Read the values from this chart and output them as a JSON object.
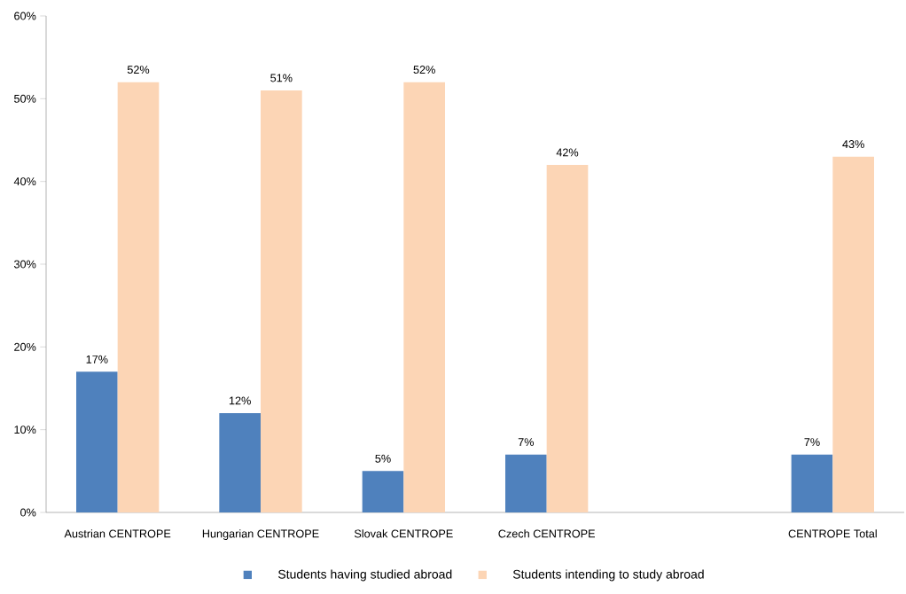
{
  "chart_data": {
    "type": "bar",
    "categories": [
      "Austrian CENTROPE",
      "Hungarian CENTROPE",
      "Slovak CENTROPE",
      "Czech CENTROPE",
      null,
      "CENTROPE Total"
    ],
    "series": [
      {
        "name": "Students having studied abroad",
        "color": "#4f81bd",
        "values": [
          17,
          12,
          5,
          7,
          null,
          7
        ],
        "value_labels": [
          "17%",
          "12%",
          "5%",
          "7%",
          null,
          "7%"
        ]
      },
      {
        "name": "Students intending to study abroad",
        "color": "#fcd5b5",
        "values": [
          52,
          51,
          52,
          42,
          null,
          43
        ],
        "value_labels": [
          "52%",
          "51%",
          "52%",
          "42%",
          null,
          "43%"
        ]
      }
    ],
    "ylim": [
      0,
      60
    ],
    "yticks": [
      {
        "value": 0,
        "label": "0%"
      },
      {
        "value": 10,
        "label": "10%"
      },
      {
        "value": 20,
        "label": "20%"
      },
      {
        "value": 30,
        "label": "30%"
      },
      {
        "value": 40,
        "label": "40%"
      },
      {
        "value": 50,
        "label": "50%"
      },
      {
        "value": 60,
        "label": "60%"
      }
    ],
    "grid": false,
    "legend": "bottom"
  }
}
